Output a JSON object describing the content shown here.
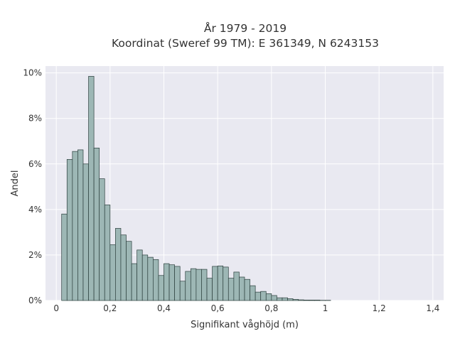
{
  "chart_data": {
    "type": "bar",
    "title_line1": "År 1979 - 2019",
    "title_line2": "Koordinat (Sweref 99 TM): E 361349, N 6243153",
    "xlabel": "Signifikant våghöjd (m)",
    "ylabel": "Andel",
    "xlim": [
      -0.04,
      1.44
    ],
    "ylim": [
      0,
      10.3
    ],
    "x_ticks": [
      0,
      0.2,
      0.4,
      0.6,
      0.8,
      1.0,
      1.2,
      1.4
    ],
    "x_tick_labels": [
      "0",
      "0,2",
      "0,4",
      "0,6",
      "0,8",
      "1",
      "1,2",
      "1,4"
    ],
    "y_ticks": [
      0,
      2,
      4,
      6,
      8,
      10
    ],
    "y_tick_labels": [
      "0%",
      "2%",
      "4%",
      "6%",
      "8%",
      "10%"
    ],
    "grid": true,
    "bin_start": 0.02,
    "bin_width": 0.02,
    "values": [
      3.8,
      6.2,
      6.55,
      6.62,
      6.0,
      9.85,
      6.7,
      5.35,
      4.2,
      2.45,
      3.17,
      2.88,
      2.6,
      1.62,
      2.22,
      2.0,
      1.9,
      1.8,
      1.1,
      1.62,
      1.57,
      1.5,
      0.85,
      1.28,
      1.4,
      1.37,
      1.37,
      0.98,
      1.5,
      1.52,
      1.47,
      0.98,
      1.25,
      1.03,
      0.93,
      0.65,
      0.37,
      0.4,
      0.3,
      0.22,
      0.12,
      0.12,
      0.08,
      0.05,
      0.03,
      0.02,
      0.02,
      0.02,
      0.01,
      0.01
    ],
    "colors": {
      "background": "#e9e9f1",
      "bar_fill": "#9db7b5",
      "bar_edge": "#2c3f3d",
      "grid": "#ffffff"
    }
  }
}
